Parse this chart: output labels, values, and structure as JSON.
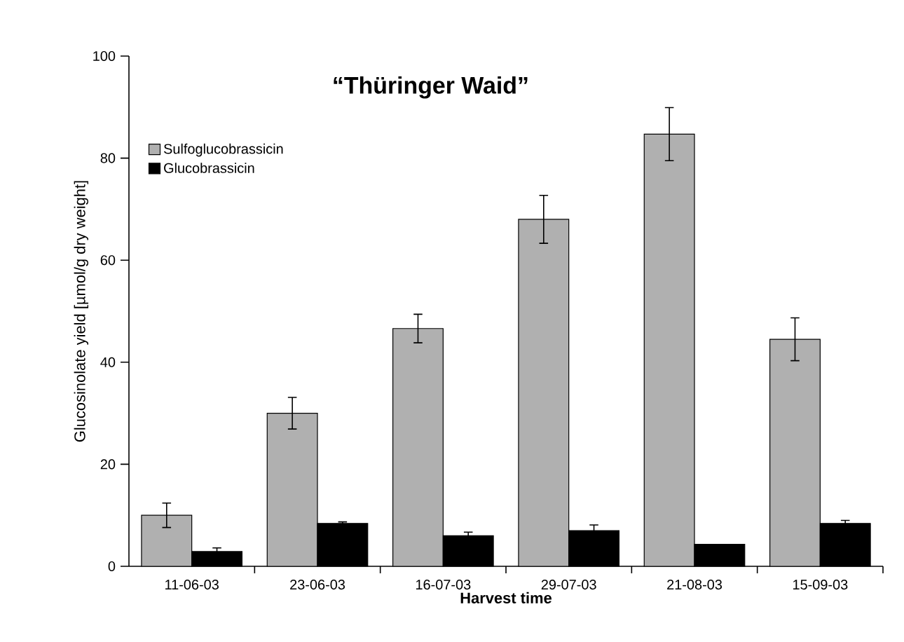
{
  "chart_data": {
    "type": "bar",
    "title": "“Thüringer Waid”",
    "xlabel": "Harvest time",
    "ylabel": "Glucosinolate yield [µmol/g dry weight]",
    "categories": [
      "11-06-03",
      "23-06-03",
      "16-07-03",
      "29-07-03",
      "21-08-03",
      "15-09-03"
    ],
    "series": [
      {
        "name": "Sulfoglucobrassicin",
        "color": "#b0b0b0",
        "values": [
          10,
          30,
          46.6,
          68,
          84.7,
          44.5
        ],
        "errors": [
          2.4,
          3.1,
          2.8,
          4.7,
          5.2,
          4.2
        ]
      },
      {
        "name": "Glucobrassicin",
        "color": "#000000",
        "values": [
          2.9,
          8.4,
          6,
          7,
          4.3,
          8.4
        ],
        "errors": [
          0.7,
          0.3,
          0.7,
          1.1,
          null,
          0.6
        ]
      }
    ],
    "ylim": [
      0,
      100
    ],
    "yticks": [
      0,
      20,
      40,
      60,
      80,
      100
    ],
    "legend": "top left",
    "grid": false
  }
}
